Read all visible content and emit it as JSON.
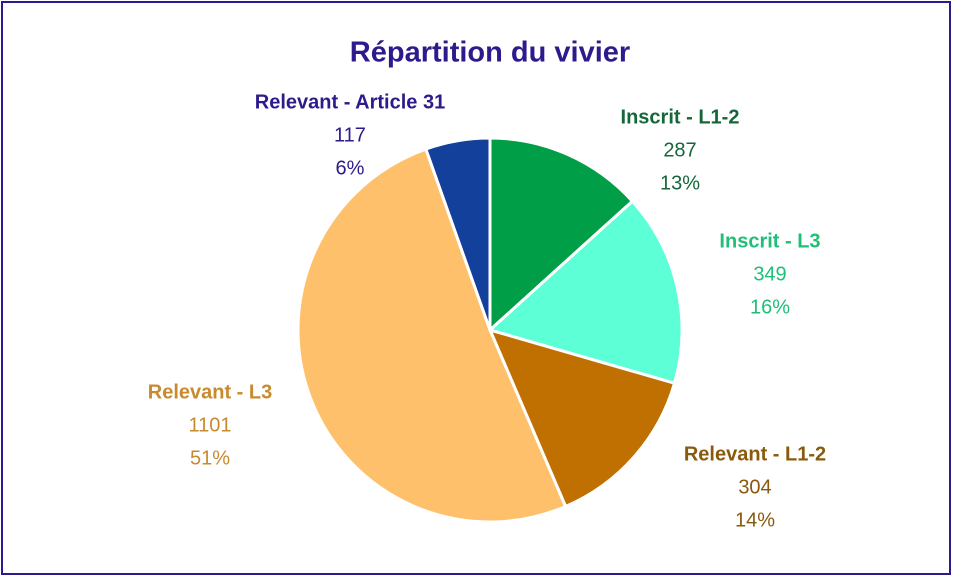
{
  "chart_data": {
    "type": "pie",
    "title": "Répartition du vivier",
    "categories": [
      "Inscrit - L1-2",
      "Inscrit - L3",
      "Relevant - L1-2",
      "Relevant - L3",
      "Relevant - Article  31"
    ],
    "values": [
      287,
      349,
      304,
      1101,
      117
    ],
    "percent_labels": [
      "13%",
      "16%",
      "14%",
      "51%",
      "6%"
    ],
    "colors": [
      "#009e47",
      "#5cffd6",
      "#c07000",
      "#ffc06c",
      "#12409a"
    ],
    "label_colors": [
      "#15673a",
      "#1fbf78",
      "#8a5a0c",
      "#c98a2e",
      "#2e1a8c"
    ]
  }
}
